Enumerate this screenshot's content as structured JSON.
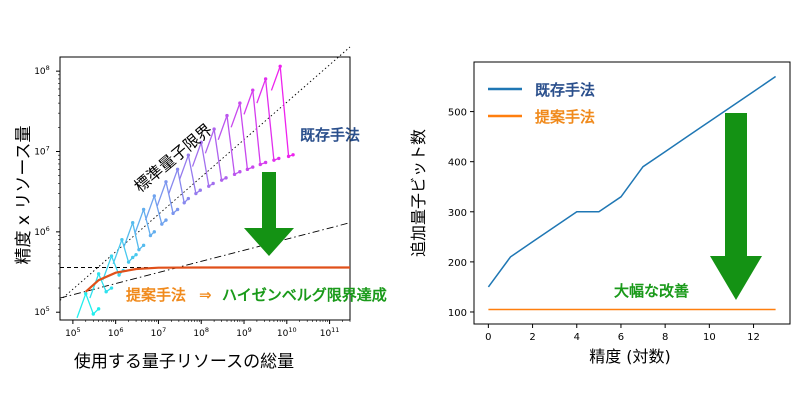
{
  "colors": {
    "existing": "#1f77b4",
    "proposed": "#ff7f0e",
    "proposed_text": "#f08a1c",
    "proposed_curve": "#e0501a",
    "heisenberg_text": "#1a9a1a",
    "arrow": "#149214",
    "existing_label": "#2a4f8c",
    "improvement_text": "#1a9a1a",
    "gradient_start": "#22eeee",
    "gradient_end": "#ee22ee"
  },
  "chart_data": [
    {
      "type": "line",
      "xscale": "log",
      "yscale": "log",
      "xlim": [
        50000,
        300000000000
      ],
      "ylim": [
        80000,
        150000000
      ],
      "x_ticks": [
        {
          "value": 100000,
          "base": "10",
          "exp": "5"
        },
        {
          "value": 1000000,
          "base": "10",
          "exp": "6"
        },
        {
          "value": 10000000,
          "base": "10",
          "exp": "7"
        },
        {
          "value": 100000000,
          "base": "10",
          "exp": "8"
        },
        {
          "value": 1000000000,
          "base": "10",
          "exp": "9"
        },
        {
          "value": 10000000000,
          "base": "10",
          "exp": "10"
        },
        {
          "value": 100000000000,
          "base": "10",
          "exp": "11"
        }
      ],
      "y_ticks": [
        {
          "value": 100000,
          "base": "10",
          "exp": "5"
        },
        {
          "value": 1000000,
          "base": "10",
          "exp": "6"
        },
        {
          "value": 10000000,
          "base": "10",
          "exp": "7"
        },
        {
          "value": 100000000,
          "base": "10",
          "exp": "8"
        }
      ],
      "xlabel": "使用する量子リソースの総量",
      "ylabel": "精度 x リソース量",
      "annotations": {
        "standard_limit": "標準量子限界",
        "existing": "既存手法",
        "proposed": "提案手法",
        "arrow_glyph": "⇒",
        "heisenberg": "ハイゼンベルグ限界達成"
      },
      "reference_lines": {
        "standard_quantum_limit": {
          "points": [
            [
              50000,
              140000
            ],
            [
              300000000000,
              200000000
            ]
          ],
          "style": "dotted"
        },
        "dash_dot": {
          "points": [
            [
              50000,
              150000
            ],
            [
              300000000000,
              1300000
            ]
          ],
          "style": "dashdot"
        },
        "heisenberg_level": {
          "points": [
            [
              50000,
              360000
            ],
            [
              300000000000,
              360000
            ]
          ],
          "style": "dashed"
        }
      },
      "proposed_curve": [
        [
          200000,
          180000
        ],
        [
          400000,
          250000
        ],
        [
          1000000,
          310000
        ],
        [
          3000000,
          345000
        ],
        [
          10000000,
          358000
        ],
        [
          100000000,
          360000
        ],
        [
          300000000000,
          360000
        ]
      ],
      "existing_series_note": "many short colored curves from cyan to magenta",
      "existing_series": [
        {
          "peak": [
            200000,
            170000
          ],
          "tail": [
            [
              300000,
              95000
            ],
            [
              400000,
              110000
            ]
          ]
        },
        {
          "peak": [
            400000,
            300000
          ],
          "tail": [
            [
              600000,
              180000
            ],
            [
              800000,
              200000
            ]
          ]
        },
        {
          "peak": [
            800000,
            500000
          ],
          "tail": [
            [
              1200000,
              290000
            ],
            [
              1500000,
              330000
            ]
          ]
        },
        {
          "peak": [
            1400000,
            800000
          ],
          "tail": [
            [
              2000000,
              420000
            ],
            [
              2500000,
              480000
            ],
            [
              3000000,
              520000
            ]
          ]
        },
        {
          "peak": [
            2500000,
            1300000
          ],
          "tail": [
            [
              3500000,
              600000
            ],
            [
              4500000,
              680000
            ]
          ]
        },
        {
          "peak": [
            4500000,
            1900000
          ],
          "tail": [
            [
              6500000,
              900000
            ],
            [
              8000000,
              1000000
            ]
          ]
        },
        {
          "peak": [
            8000000,
            2800000
          ],
          "tail": [
            [
              12000000,
              1250000
            ],
            [
              15000000,
              1400000
            ]
          ]
        },
        {
          "peak": [
            15000000,
            4200000
          ],
          "tail": [
            [
              22000000,
              1700000
            ],
            [
              28000000,
              1900000
            ]
          ]
        },
        {
          "peak": [
            28000000,
            6000000
          ],
          "tail": [
            [
              40000000,
              2300000
            ],
            [
              50000000,
              2600000
            ]
          ]
        },
        {
          "peak": [
            50000000,
            9000000
          ],
          "tail": [
            [
              75000000,
              3000000
            ],
            [
              95000000,
              3300000
            ]
          ]
        },
        {
          "peak": [
            100000000,
            13000000
          ],
          "tail": [
            [
              150000000,
              3700000
            ],
            [
              190000000,
              4000000
            ]
          ]
        },
        {
          "peak": [
            200000000,
            19000000
          ],
          "tail": [
            [
              300000000,
              4400000
            ],
            [
              380000000,
              4700000
            ]
          ]
        },
        {
          "peak": [
            400000000,
            28000000
          ],
          "tail": [
            [
              600000000,
              5200000
            ],
            [
              800000000,
              5600000
            ]
          ]
        },
        {
          "peak": [
            800000000,
            40000000
          ],
          "tail": [
            [
              1200000000,
              6000000
            ],
            [
              1600000000,
              6400000
            ]
          ]
        },
        {
          "peak": [
            1600000000,
            58000000
          ],
          "tail": [
            [
              2400000000,
              6900000
            ],
            [
              3200000000,
              7300000
            ]
          ]
        },
        {
          "peak": [
            3200000000,
            80000000
          ],
          "tail": [
            [
              5000000000,
              7800000
            ],
            [
              6500000000,
              8200000
            ]
          ]
        },
        {
          "peak": [
            7000000000,
            115000000
          ],
          "tail": [
            [
              11000000000,
              8700000
            ],
            [
              14000000000,
              9100000
            ]
          ]
        }
      ]
    },
    {
      "type": "line",
      "xlim": [
        -0.65,
        13.65
      ],
      "ylim": [
        76,
        599
      ],
      "x_ticks": [
        0,
        2,
        4,
        6,
        8,
        10,
        12
      ],
      "y_ticks": [
        100,
        200,
        300,
        400,
        500
      ],
      "xlabel": "精度 (対数)",
      "ylabel": "追加量子ビット数",
      "legend_position": "upper-left",
      "annotation": "大幅な改善",
      "series": [
        {
          "name": "既存手法",
          "x": [
            0,
            1,
            2,
            3,
            4,
            5,
            6,
            7,
            8,
            9,
            10,
            11,
            12,
            13
          ],
          "values": [
            150,
            210,
            240,
            270,
            300,
            300,
            330,
            390,
            420,
            450,
            480,
            510,
            540,
            570
          ]
        },
        {
          "name": "提案手法",
          "x": [
            0,
            1,
            2,
            3,
            4,
            5,
            6,
            7,
            8,
            9,
            10,
            11,
            12,
            13
          ],
          "values": [
            105,
            105,
            105,
            105,
            105,
            105,
            105,
            105,
            105,
            105,
            105,
            105,
            105,
            105
          ]
        }
      ]
    }
  ]
}
